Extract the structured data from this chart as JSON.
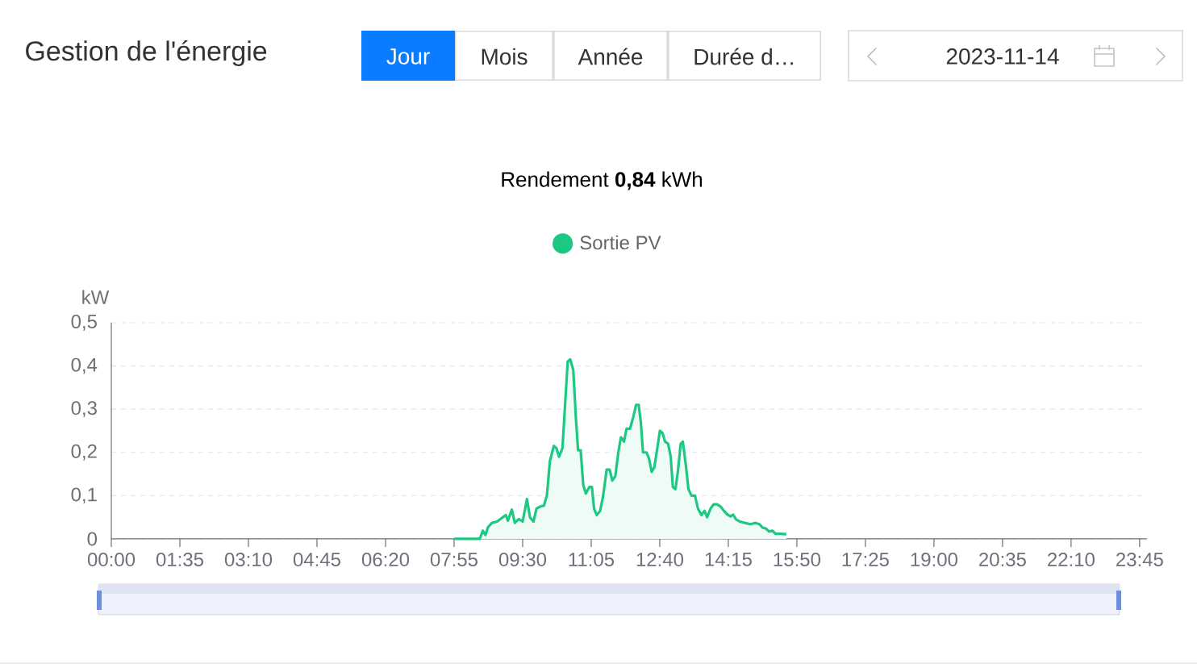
{
  "chart_data": {
    "type": "area",
    "title": "Gestion de l'énergie",
    "subtitle": "Rendement **0,84** kWh",
    "ylabel": "kW",
    "annotations": [
      "Jour",
      "Mois",
      "Année",
      "Durée d…",
      "2023-11-14"
    ],
    "x": [
      7.92,
      8.51,
      8.58,
      8.64,
      8.7,
      8.79,
      8.91,
      9.04,
      9.11,
      9.16,
      9.25,
      9.32,
      9.41,
      9.5,
      9.6,
      9.67,
      9.75,
      9.82,
      9.91,
      9.99,
      10.06,
      10.13,
      10.22,
      10.28,
      10.34,
      10.42,
      10.48,
      10.54,
      10.6,
      10.67,
      10.73,
      10.78,
      10.84,
      10.9,
      10.96,
      11.04,
      11.1,
      11.15,
      11.21,
      11.29,
      11.36,
      11.44,
      11.51,
      11.57,
      11.64,
      11.71,
      11.77,
      11.84,
      11.9,
      11.98,
      12.05,
      12.12,
      12.18,
      12.23,
      12.28,
      12.36,
      12.42,
      12.48,
      12.54,
      12.61,
      12.67,
      12.73,
      12.79,
      12.86,
      12.92,
      12.97,
      13.03,
      13.09,
      13.15,
      13.2,
      13.27,
      13.33,
      13.4,
      13.48,
      13.55,
      13.63,
      13.7,
      13.76,
      13.84,
      13.91,
      13.99,
      14.07,
      14.15,
      14.22,
      14.3,
      14.36,
      14.43,
      14.52,
      14.63,
      14.76,
      14.88,
      14.97,
      15.04,
      15.12,
      15.19,
      15.27,
      15.34,
      15.44,
      15.59
    ],
    "series": [
      {
        "name": "Sortie PV",
        "color": "#1dc883",
        "values": [
          0,
          0,
          0.019,
          0.009,
          0.027,
          0.037,
          0.04,
          0.05,
          0.055,
          0.042,
          0.068,
          0.037,
          0.046,
          0.04,
          0.092,
          0.05,
          0.04,
          0.07,
          0.075,
          0.077,
          0.1,
          0.18,
          0.215,
          0.21,
          0.19,
          0.21,
          0.31,
          0.41,
          0.415,
          0.39,
          0.28,
          0.205,
          0.205,
          0.125,
          0.105,
          0.12,
          0.12,
          0.07,
          0.055,
          0.065,
          0.1,
          0.16,
          0.16,
          0.135,
          0.145,
          0.2,
          0.235,
          0.225,
          0.255,
          0.255,
          0.28,
          0.31,
          0.31,
          0.27,
          0.2,
          0.2,
          0.185,
          0.155,
          0.165,
          0.21,
          0.25,
          0.245,
          0.225,
          0.22,
          0.19,
          0.12,
          0.115,
          0.16,
          0.22,
          0.225,
          0.17,
          0.115,
          0.1,
          0.1,
          0.07,
          0.055,
          0.065,
          0.05,
          0.07,
          0.08,
          0.08,
          0.075,
          0.065,
          0.057,
          0.052,
          0.056,
          0.045,
          0.04,
          0.037,
          0.034,
          0.037,
          0.034,
          0.026,
          0.024,
          0.017,
          0.019,
          0.012,
          0.012,
          0.011
        ]
      }
    ],
    "xlim": [
      0,
      23.92
    ],
    "ylim": [
      0,
      0.5
    ],
    "xticks": [
      {
        "value": 0,
        "label": "00:00"
      },
      {
        "value": 1.5833,
        "label": "01:35"
      },
      {
        "value": 3.1667,
        "label": "03:10"
      },
      {
        "value": 4.75,
        "label": "04:45"
      },
      {
        "value": 6.3333,
        "label": "06:20"
      },
      {
        "value": 7.9167,
        "label": "07:55"
      },
      {
        "value": 9.5,
        "label": "09:30"
      },
      {
        "value": 11.0833,
        "label": "11:05"
      },
      {
        "value": 12.6667,
        "label": "12:40"
      },
      {
        "value": 14.25,
        "label": "14:15"
      },
      {
        "value": 15.8333,
        "label": "15:50"
      },
      {
        "value": 17.4167,
        "label": "17:25"
      },
      {
        "value": 19,
        "label": "19:00"
      },
      {
        "value": 20.5833,
        "label": "20:35"
      },
      {
        "value": 22.1667,
        "label": "22:10"
      },
      {
        "value": 23.75,
        "label": "23:45"
      }
    ],
    "yticks": [
      0,
      {
        "value": 0.1,
        "label": "0,1"
      },
      {
        "value": 0.2,
        "label": "0,2"
      },
      {
        "value": 0.3,
        "label": "0,3"
      },
      {
        "value": 0.4,
        "label": "0,4"
      },
      {
        "value": 0.5,
        "label": "0,5"
      }
    ],
    "grid": "y",
    "legend": "top"
  }
}
